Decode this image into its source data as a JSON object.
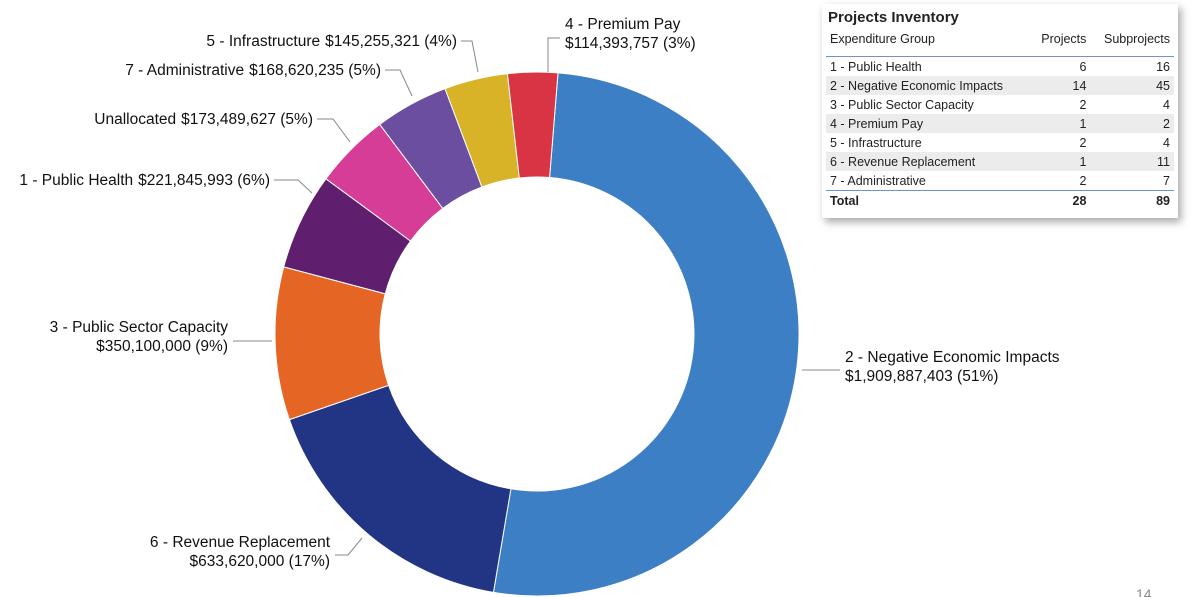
{
  "chart_data": {
    "type": "donut",
    "categories": [
      "2 - Negative Economic Impacts",
      "6 - Revenue Replacement",
      "3 - Public Sector Capacity",
      "1 - Public Health",
      "Unallocated",
      "7 - Administrative",
      "5 - Infrastructure",
      "4 - Premium Pay"
    ],
    "values": [
      1909887403,
      633620000,
      350100000,
      221845993,
      173489627,
      168620235,
      145255321,
      114393757
    ],
    "value_labels": [
      "$1,909,887,403 (51%)",
      "$633,620,000 (17%)",
      "$350,100,000 (9%)",
      "$221,845,993 (6%)",
      "$173,489,627 (5%)",
      "$168,620,235 (5%)",
      "$145,255,321 (4%)",
      "$114,393,757 (3%)"
    ],
    "colors": [
      "#3d7fc4",
      "#223584",
      "#e56624",
      "#5f1f6e",
      "#d63d97",
      "#6b4ea0",
      "#d8b227",
      "#d93444"
    ]
  },
  "table": {
    "title": "Projects Inventory",
    "columns": [
      "Expenditure Group",
      "Projects",
      "Subprojects"
    ],
    "rows": [
      [
        "1 - Public Health",
        6,
        16
      ],
      [
        "2 - Negative Economic Impacts",
        14,
        45
      ],
      [
        "3 - Public Sector Capacity",
        2,
        4
      ],
      [
        "4 - Premium Pay",
        1,
        2
      ],
      [
        "5 - Infrastructure",
        2,
        4
      ],
      [
        "6 - Revenue Replacement",
        1,
        11
      ],
      [
        "7 - Administrative",
        2,
        7
      ]
    ],
    "total": [
      "Total",
      28,
      89
    ]
  },
  "page_number": "14"
}
